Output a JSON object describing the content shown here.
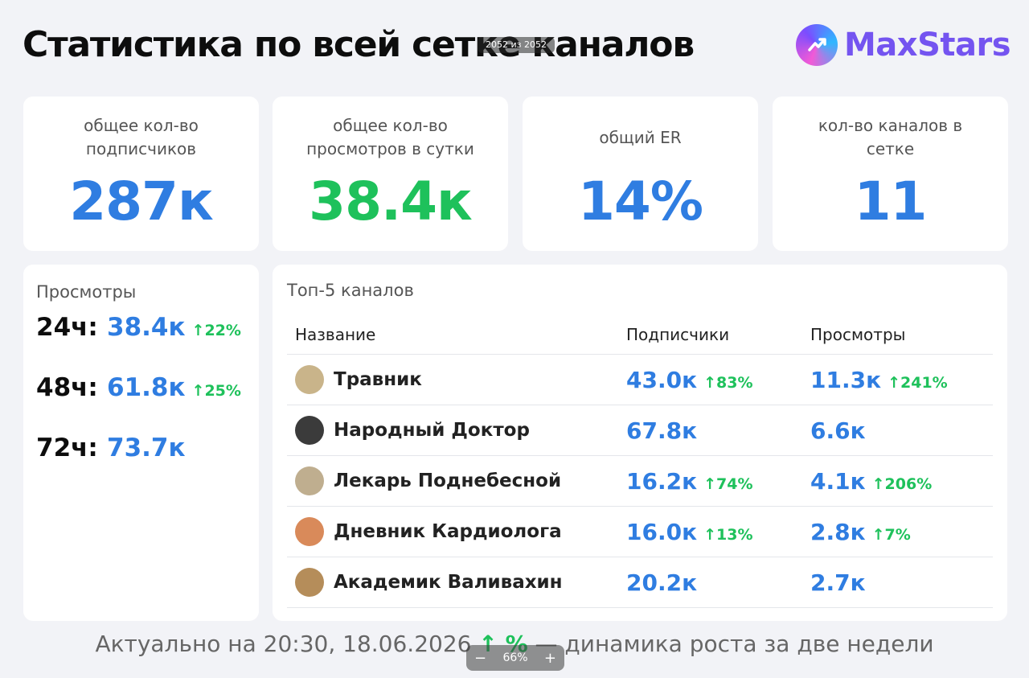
{
  "header": {
    "title": "Статистика по всей сетке каналов",
    "pager_text": "2052 из 2052",
    "logo_text": "MaxStars"
  },
  "stats": [
    {
      "label": "общее кол-во подписчиков",
      "value": "287к",
      "color": "#2f7de1"
    },
    {
      "label": "общее кол-во просмотров в сутки",
      "value": "38.4к",
      "color": "#1ec15b"
    },
    {
      "label": "общий ER",
      "value": "14%",
      "color": "#2f7de1"
    },
    {
      "label": "кол-во каналов в сетке",
      "value": "11",
      "color": "#2f7de1"
    }
  ],
  "views": {
    "heading": "Просмотры",
    "rows": [
      {
        "label": "24ч:",
        "value": "38.4к",
        "gain": "↑22%"
      },
      {
        "label": "48ч:",
        "value": "61.8к",
        "gain": "↑25%"
      },
      {
        "label": "72ч:",
        "value": "73.7к",
        "gain": ""
      }
    ]
  },
  "top5": {
    "heading": "Топ-5 каналов",
    "columns": [
      "Название",
      "Подписчики",
      "Просмотры"
    ],
    "rows": [
      {
        "name": "Травник",
        "subs": "43.0к",
        "subs_gain": "↑83%",
        "views": "11.3к",
        "views_gain": "↑241%",
        "avatar_color": "#c9b48a"
      },
      {
        "name": "Народный Доктор",
        "subs": "67.8к",
        "subs_gain": "",
        "views": "6.6к",
        "views_gain": "",
        "avatar_color": "#3b3b3b"
      },
      {
        "name": "Лекарь Поднебесной",
        "subs": "16.2к",
        "subs_gain": "↑74%",
        "views": "4.1к",
        "views_gain": "↑206%",
        "avatar_color": "#bfae8f"
      },
      {
        "name": "Дневник Кардиолога",
        "subs": "16.0к",
        "subs_gain": "↑13%",
        "views": "2.8к",
        "views_gain": "↑7%",
        "avatar_color": "#d98a5a"
      },
      {
        "name": "Академик Валивахин",
        "subs": "20.2к",
        "subs_gain": "",
        "views": "2.7к",
        "views_gain": "",
        "avatar_color": "#b58d5a"
      }
    ]
  },
  "footer": {
    "prefix": "Актуально на 20:30, 18.06.2026",
    "arrow": "↑ %",
    "suffix": "— динамика роста за две недели"
  },
  "zoom": {
    "minus": "−",
    "level": "66%",
    "plus": "+"
  }
}
